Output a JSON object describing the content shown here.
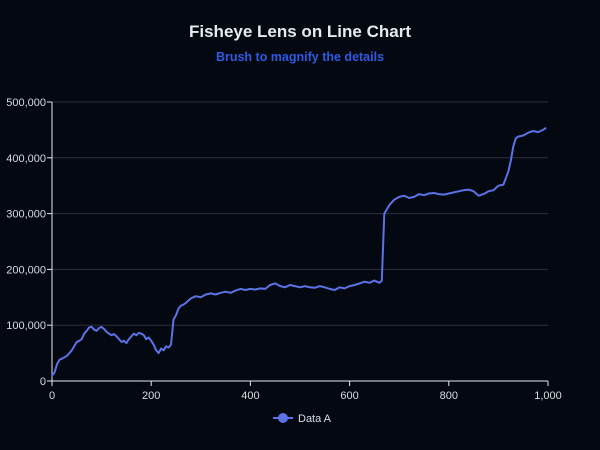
{
  "chart_data": {
    "type": "line",
    "title": "Fisheye Lens on Line Chart",
    "subtitle": "Brush to magnify the details",
    "xlabel": "",
    "ylabel": "",
    "xlim": [
      0,
      1000
    ],
    "ylim": [
      0,
      500000
    ],
    "x_ticks": [
      "0",
      "200",
      "400",
      "600",
      "800",
      "1,000"
    ],
    "y_ticks": [
      "0",
      "100,000",
      "200,000",
      "300,000",
      "400,000",
      "500,000"
    ],
    "grid": true,
    "legend_position": "bottom",
    "series": [
      {
        "name": "Data A",
        "x": [
          0,
          5,
          10,
          15,
          20,
          30,
          40,
          50,
          55,
          60,
          65,
          70,
          75,
          80,
          85,
          90,
          95,
          100,
          105,
          110,
          115,
          120,
          125,
          130,
          135,
          140,
          145,
          150,
          155,
          160,
          165,
          170,
          175,
          180,
          185,
          190,
          195,
          200,
          205,
          210,
          215,
          220,
          225,
          230,
          235,
          240,
          245,
          250,
          255,
          260,
          265,
          270,
          280,
          290,
          300,
          310,
          320,
          330,
          340,
          350,
          360,
          370,
          380,
          390,
          400,
          410,
          420,
          430,
          440,
          450,
          460,
          470,
          480,
          490,
          500,
          510,
          520,
          530,
          540,
          550,
          560,
          570,
          580,
          590,
          600,
          610,
          620,
          630,
          640,
          650,
          655,
          660,
          665,
          670,
          680,
          690,
          700,
          710,
          720,
          730,
          740,
          750,
          760,
          770,
          780,
          790,
          800,
          810,
          820,
          830,
          840,
          850,
          860,
          870,
          880,
          890,
          900,
          910,
          920,
          925,
          930,
          935,
          940,
          950,
          960,
          970,
          980,
          990,
          995
        ],
        "y": [
          10000,
          15000,
          30000,
          38000,
          40000,
          45000,
          55000,
          70000,
          72000,
          75000,
          85000,
          90000,
          96000,
          97000,
          92000,
          90000,
          95000,
          97000,
          93000,
          88000,
          85000,
          82000,
          84000,
          80000,
          75000,
          70000,
          72000,
          68000,
          75000,
          80000,
          85000,
          82000,
          86000,
          85000,
          82000,
          75000,
          78000,
          72000,
          65000,
          55000,
          50000,
          58000,
          55000,
          62000,
          60000,
          65000,
          110000,
          118000,
          130000,
          135000,
          137000,
          140000,
          148000,
          152000,
          150000,
          155000,
          157000,
          155000,
          158000,
          160000,
          158000,
          162000,
          165000,
          163000,
          165000,
          164000,
          166000,
          165000,
          172000,
          175000,
          170000,
          168000,
          172000,
          170000,
          168000,
          170000,
          168000,
          167000,
          170000,
          168000,
          165000,
          163000,
          168000,
          166000,
          170000,
          172000,
          175000,
          178000,
          176000,
          180000,
          178000,
          176000,
          180000,
          300000,
          315000,
          325000,
          330000,
          332000,
          328000,
          330000,
          335000,
          333000,
          336000,
          337000,
          335000,
          334000,
          336000,
          338000,
          340000,
          342000,
          343000,
          340000,
          332000,
          335000,
          340000,
          342000,
          350000,
          352000,
          375000,
          395000,
          420000,
          435000,
          438000,
          440000,
          445000,
          448000,
          446000,
          450000,
          453000
        ]
      }
    ]
  },
  "colors": {
    "background": "#040811",
    "line": "#5a73e6",
    "subtitle": "#2d5be3",
    "grid": "#2a3140",
    "axis": "#e6e8ee",
    "text": "#d9dce3"
  }
}
